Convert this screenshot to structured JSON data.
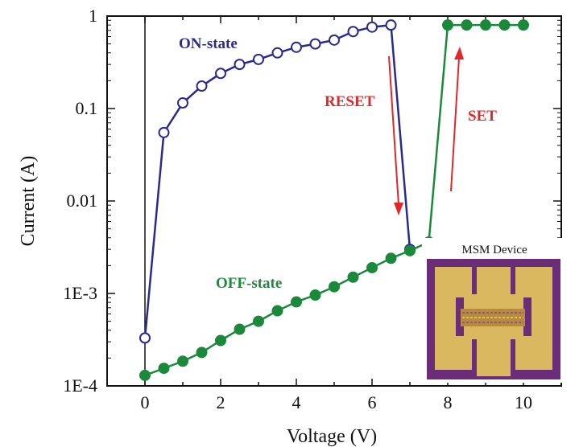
{
  "chart_data": {
    "type": "line",
    "xlabel": "Voltage (V)",
    "ylabel": "Current (A)",
    "xlim": [
      -1,
      11
    ],
    "ylim": [
      0.0001,
      1
    ],
    "yscale": "log",
    "xticks": [
      0,
      2,
      4,
      6,
      8,
      10
    ],
    "yticks": [
      0.0001,
      0.001,
      0.01,
      0.1,
      1
    ],
    "ytick_labels": [
      "1E-4",
      "1E-3",
      "0.01",
      "0.1",
      "1"
    ],
    "grid": false,
    "series": [
      {
        "name": "ON-state",
        "color": "#2a2a8c",
        "marker": "open-circle",
        "x": [
          0,
          0.5,
          1,
          1.5,
          2,
          2.5,
          3,
          3.5,
          4,
          4.5,
          5,
          5.5,
          6,
          6.5,
          7
        ],
        "y": [
          0.00033,
          0.055,
          0.115,
          0.175,
          0.24,
          0.3,
          0.34,
          0.4,
          0.46,
          0.5,
          0.55,
          0.68,
          0.76,
          0.8,
          0.003
        ]
      },
      {
        "name": "OFF-state",
        "color": "#1a8a3a",
        "marker": "filled-circle",
        "x": [
          0,
          0.5,
          1,
          1.5,
          2,
          2.5,
          3,
          3.5,
          4,
          4.5,
          5,
          5.5,
          6,
          6.5,
          7,
          7.5,
          8,
          8.5,
          9,
          9.5,
          10
        ],
        "y": [
          0.00013,
          0.000155,
          0.000185,
          0.00023,
          0.00031,
          0.00041,
          0.0005,
          0.00065,
          0.00081,
          0.00096,
          0.00118,
          0.0015,
          0.0019,
          0.0024,
          0.0029,
          0.0036,
          0.8,
          0.8,
          0.8,
          0.8,
          0.8
        ]
      }
    ],
    "annotations": {
      "on_state": "ON-state",
      "off_state": "OFF-state",
      "reset": "RESET",
      "set": "SET",
      "inset_title": "MSM Device",
      "arrow_color": "#e02828"
    }
  }
}
